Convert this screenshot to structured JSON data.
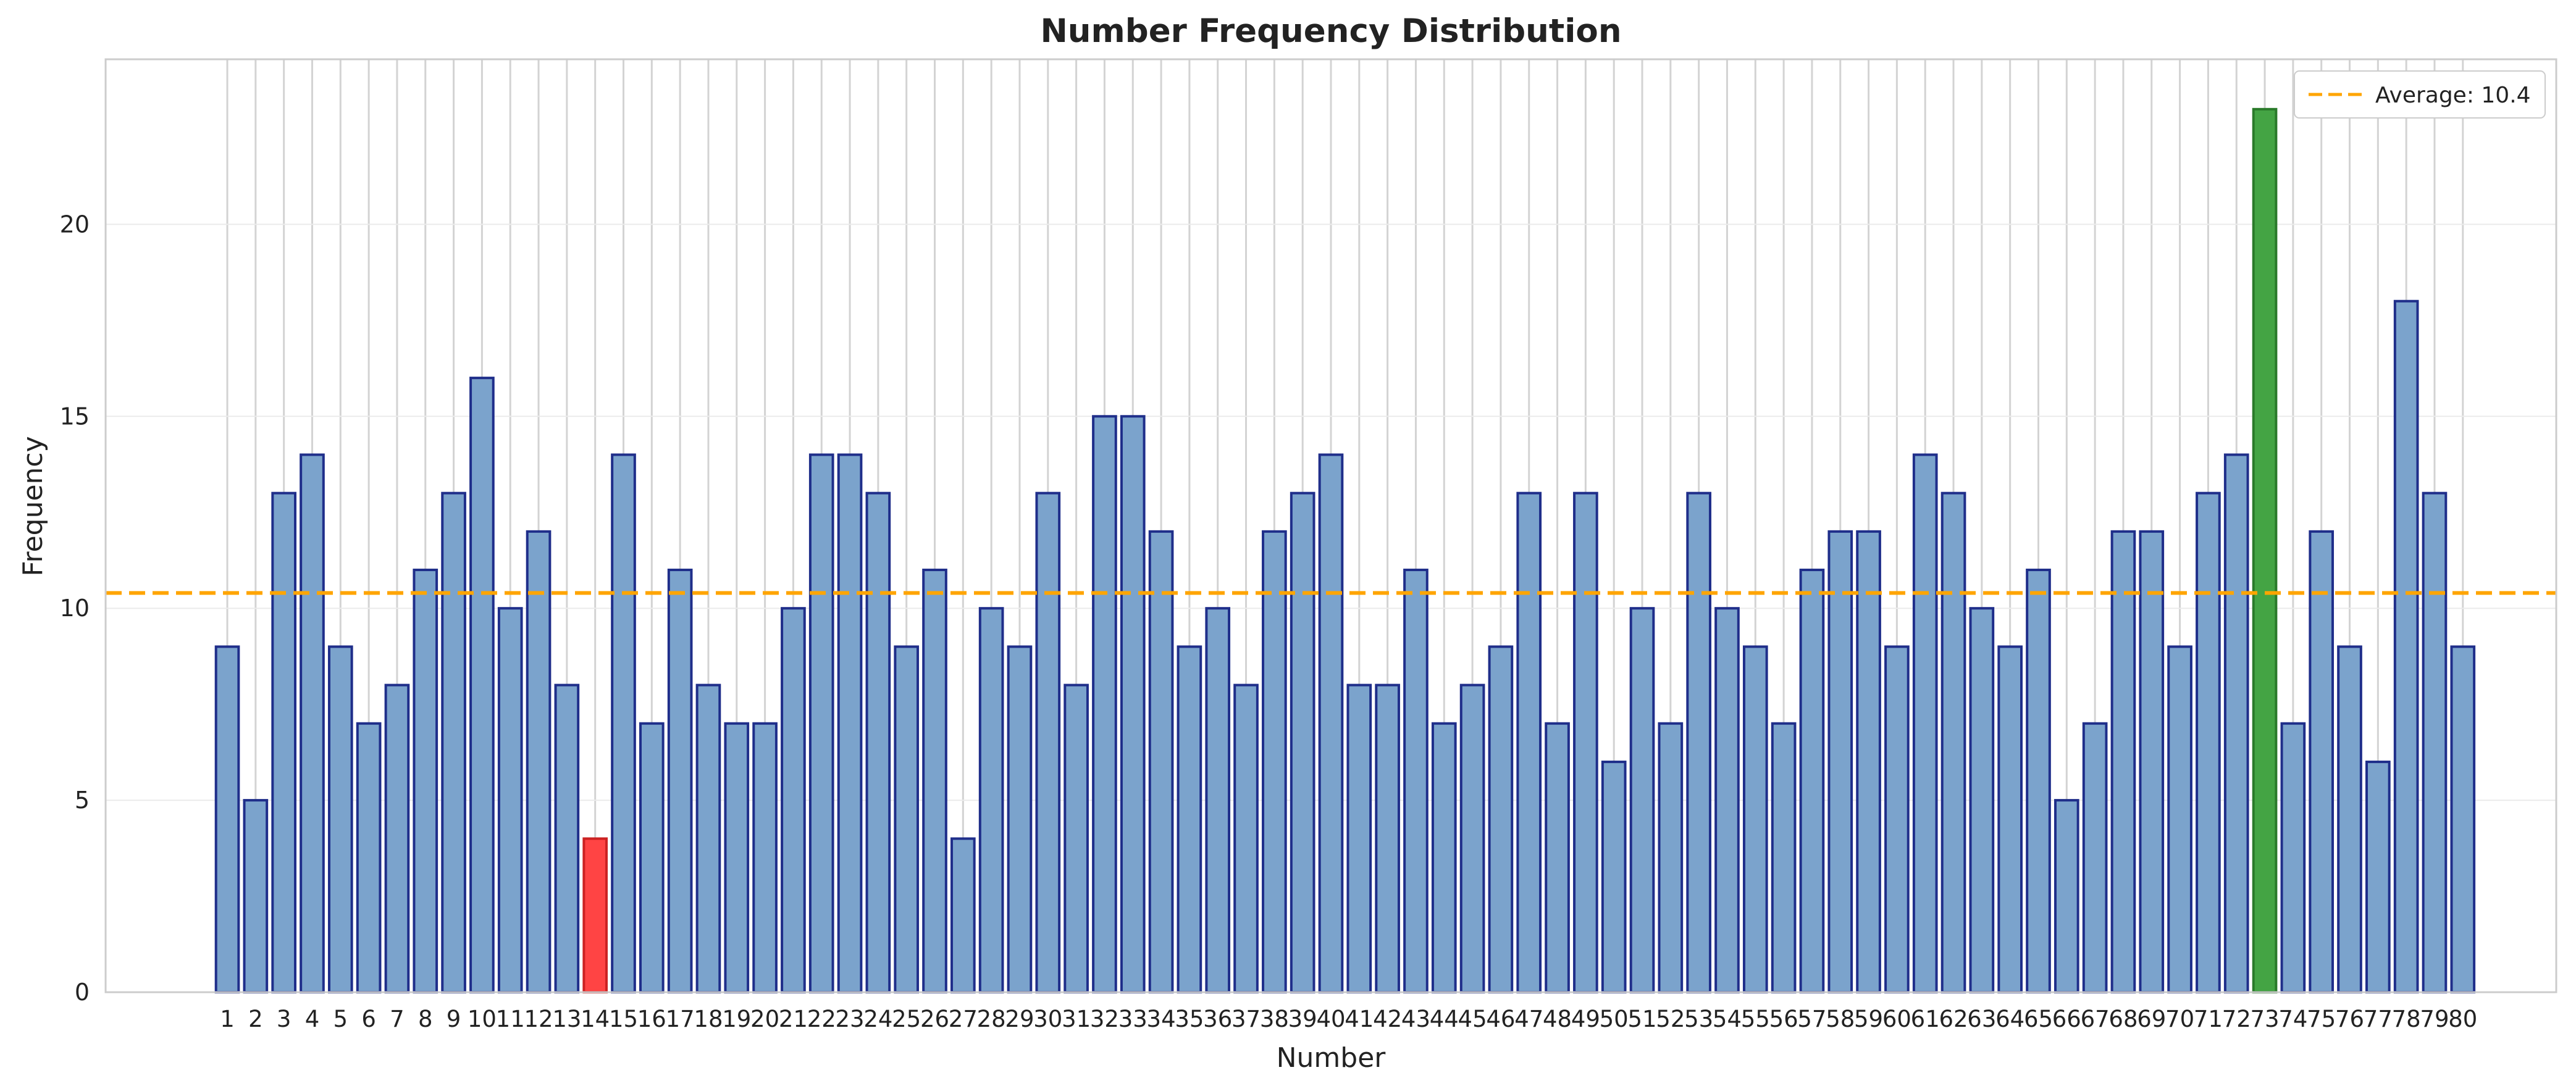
{
  "chart_data": {
    "type": "bar",
    "title": "Number Frequency Distribution",
    "xlabel": "Number",
    "ylabel": "Frequency",
    "categories": [
      "1",
      "2",
      "3",
      "4",
      "5",
      "6",
      "7",
      "8",
      "9",
      "10",
      "11",
      "12",
      "13",
      "14",
      "15",
      "16",
      "17",
      "18",
      "19",
      "20",
      "21",
      "22",
      "23",
      "24",
      "25",
      "26",
      "27",
      "28",
      "29",
      "30",
      "31",
      "32",
      "33",
      "34",
      "35",
      "36",
      "37",
      "38",
      "39",
      "40",
      "41",
      "42",
      "43",
      "44",
      "45",
      "46",
      "47",
      "48",
      "49",
      "50",
      "51",
      "52",
      "53",
      "54",
      "55",
      "56",
      "57",
      "58",
      "59",
      "60",
      "61",
      "62",
      "63",
      "64",
      "65",
      "66",
      "67",
      "68",
      "69",
      "70",
      "71",
      "72",
      "73",
      "74",
      "75",
      "76",
      "77",
      "78",
      "79",
      "80"
    ],
    "values": [
      9,
      5,
      13,
      14,
      9,
      7,
      8,
      11,
      13,
      16,
      10,
      12,
      8,
      4,
      14,
      7,
      11,
      8,
      7,
      7,
      10,
      14,
      14,
      13,
      9,
      11,
      4,
      10,
      9,
      13,
      8,
      15,
      15,
      12,
      9,
      10,
      8,
      12,
      13,
      14,
      8,
      8,
      11,
      7,
      8,
      9,
      13,
      7,
      13,
      6,
      10,
      7,
      13,
      10,
      9,
      7,
      11,
      12,
      12,
      9,
      14,
      13,
      10,
      9,
      11,
      5,
      7,
      12,
      12,
      9,
      13,
      14,
      23,
      7,
      12,
      9,
      6,
      18,
      13,
      9
    ],
    "ylim": [
      0,
      24.3
    ],
    "yticks": [
      0,
      5,
      10,
      15,
      20
    ],
    "xlim": [
      -3.3,
      83.3
    ],
    "average": 10.4,
    "legend": {
      "label": "Average: 10.4",
      "placement": "top-right"
    },
    "highlight": {
      "min_category": "14",
      "max_category": "73"
    },
    "grid": true,
    "colors": {
      "bar_fill": "#7BA3CC",
      "bar_edge": "#1F2E8A",
      "min_fill": "#FF4444",
      "min_edge": "#CC2222",
      "max_fill": "#44A444",
      "max_edge": "#2A7A2A",
      "average_line": "#FFA500",
      "grid": "#D3D3D3",
      "axes_edge": "#CCCCCC",
      "text": "#222222"
    }
  }
}
